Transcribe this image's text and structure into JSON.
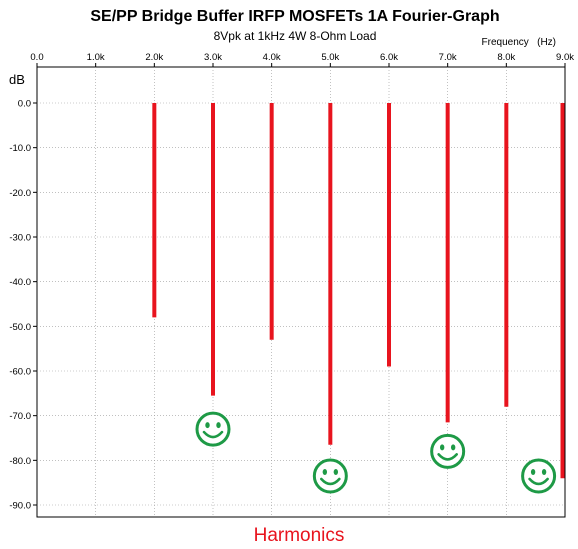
{
  "chart_data": {
    "type": "bar",
    "title": "SE/PP Bridge Buffer IRFP MOSFETs 1A Fourier-Graph",
    "subtitle": "8Vpk at 1kHz 4W 8-Ohm Load",
    "xlabel": "Harmonics",
    "ylabel": "dB",
    "x_unit_label": "Frequency   (Hz)",
    "x_ticks": [
      "0.0",
      "1.0k",
      "2.0k",
      "3.0k",
      "4.0k",
      "5.0k",
      "6.0k",
      "7.0k",
      "8.0k",
      "9.0k"
    ],
    "y_ticks": [
      "0.0",
      "-10.0",
      "-20.0",
      "-30.0",
      "-40.0",
      "-50.0",
      "-60.0",
      "-70.0",
      "-80.0",
      "-90.0"
    ],
    "xlim": [
      0,
      9000
    ],
    "ylim": [
      -93,
      0
    ],
    "grid": true,
    "series": [
      {
        "color": "#e8141e",
        "x": [
          2000,
          3000,
          4000,
          5000,
          6000,
          7000,
          8000,
          9000
        ],
        "values": [
          -48,
          -65.5,
          -53,
          -76.5,
          -59,
          -71.5,
          -68,
          -84
        ]
      }
    ],
    "annotations": [
      {
        "icon": "smiley-face-icon",
        "x": 3000,
        "y": -73,
        "color": "#1e9a46"
      },
      {
        "icon": "smiley-face-icon",
        "x": 5000,
        "y": -83.5,
        "color": "#1e9a46"
      },
      {
        "icon": "smiley-face-icon",
        "x": 7000,
        "y": -78,
        "color": "#1e9a46"
      },
      {
        "icon": "smiley-face-icon",
        "x": 8550,
        "y": -83.5,
        "color": "#1e9a46"
      }
    ]
  }
}
